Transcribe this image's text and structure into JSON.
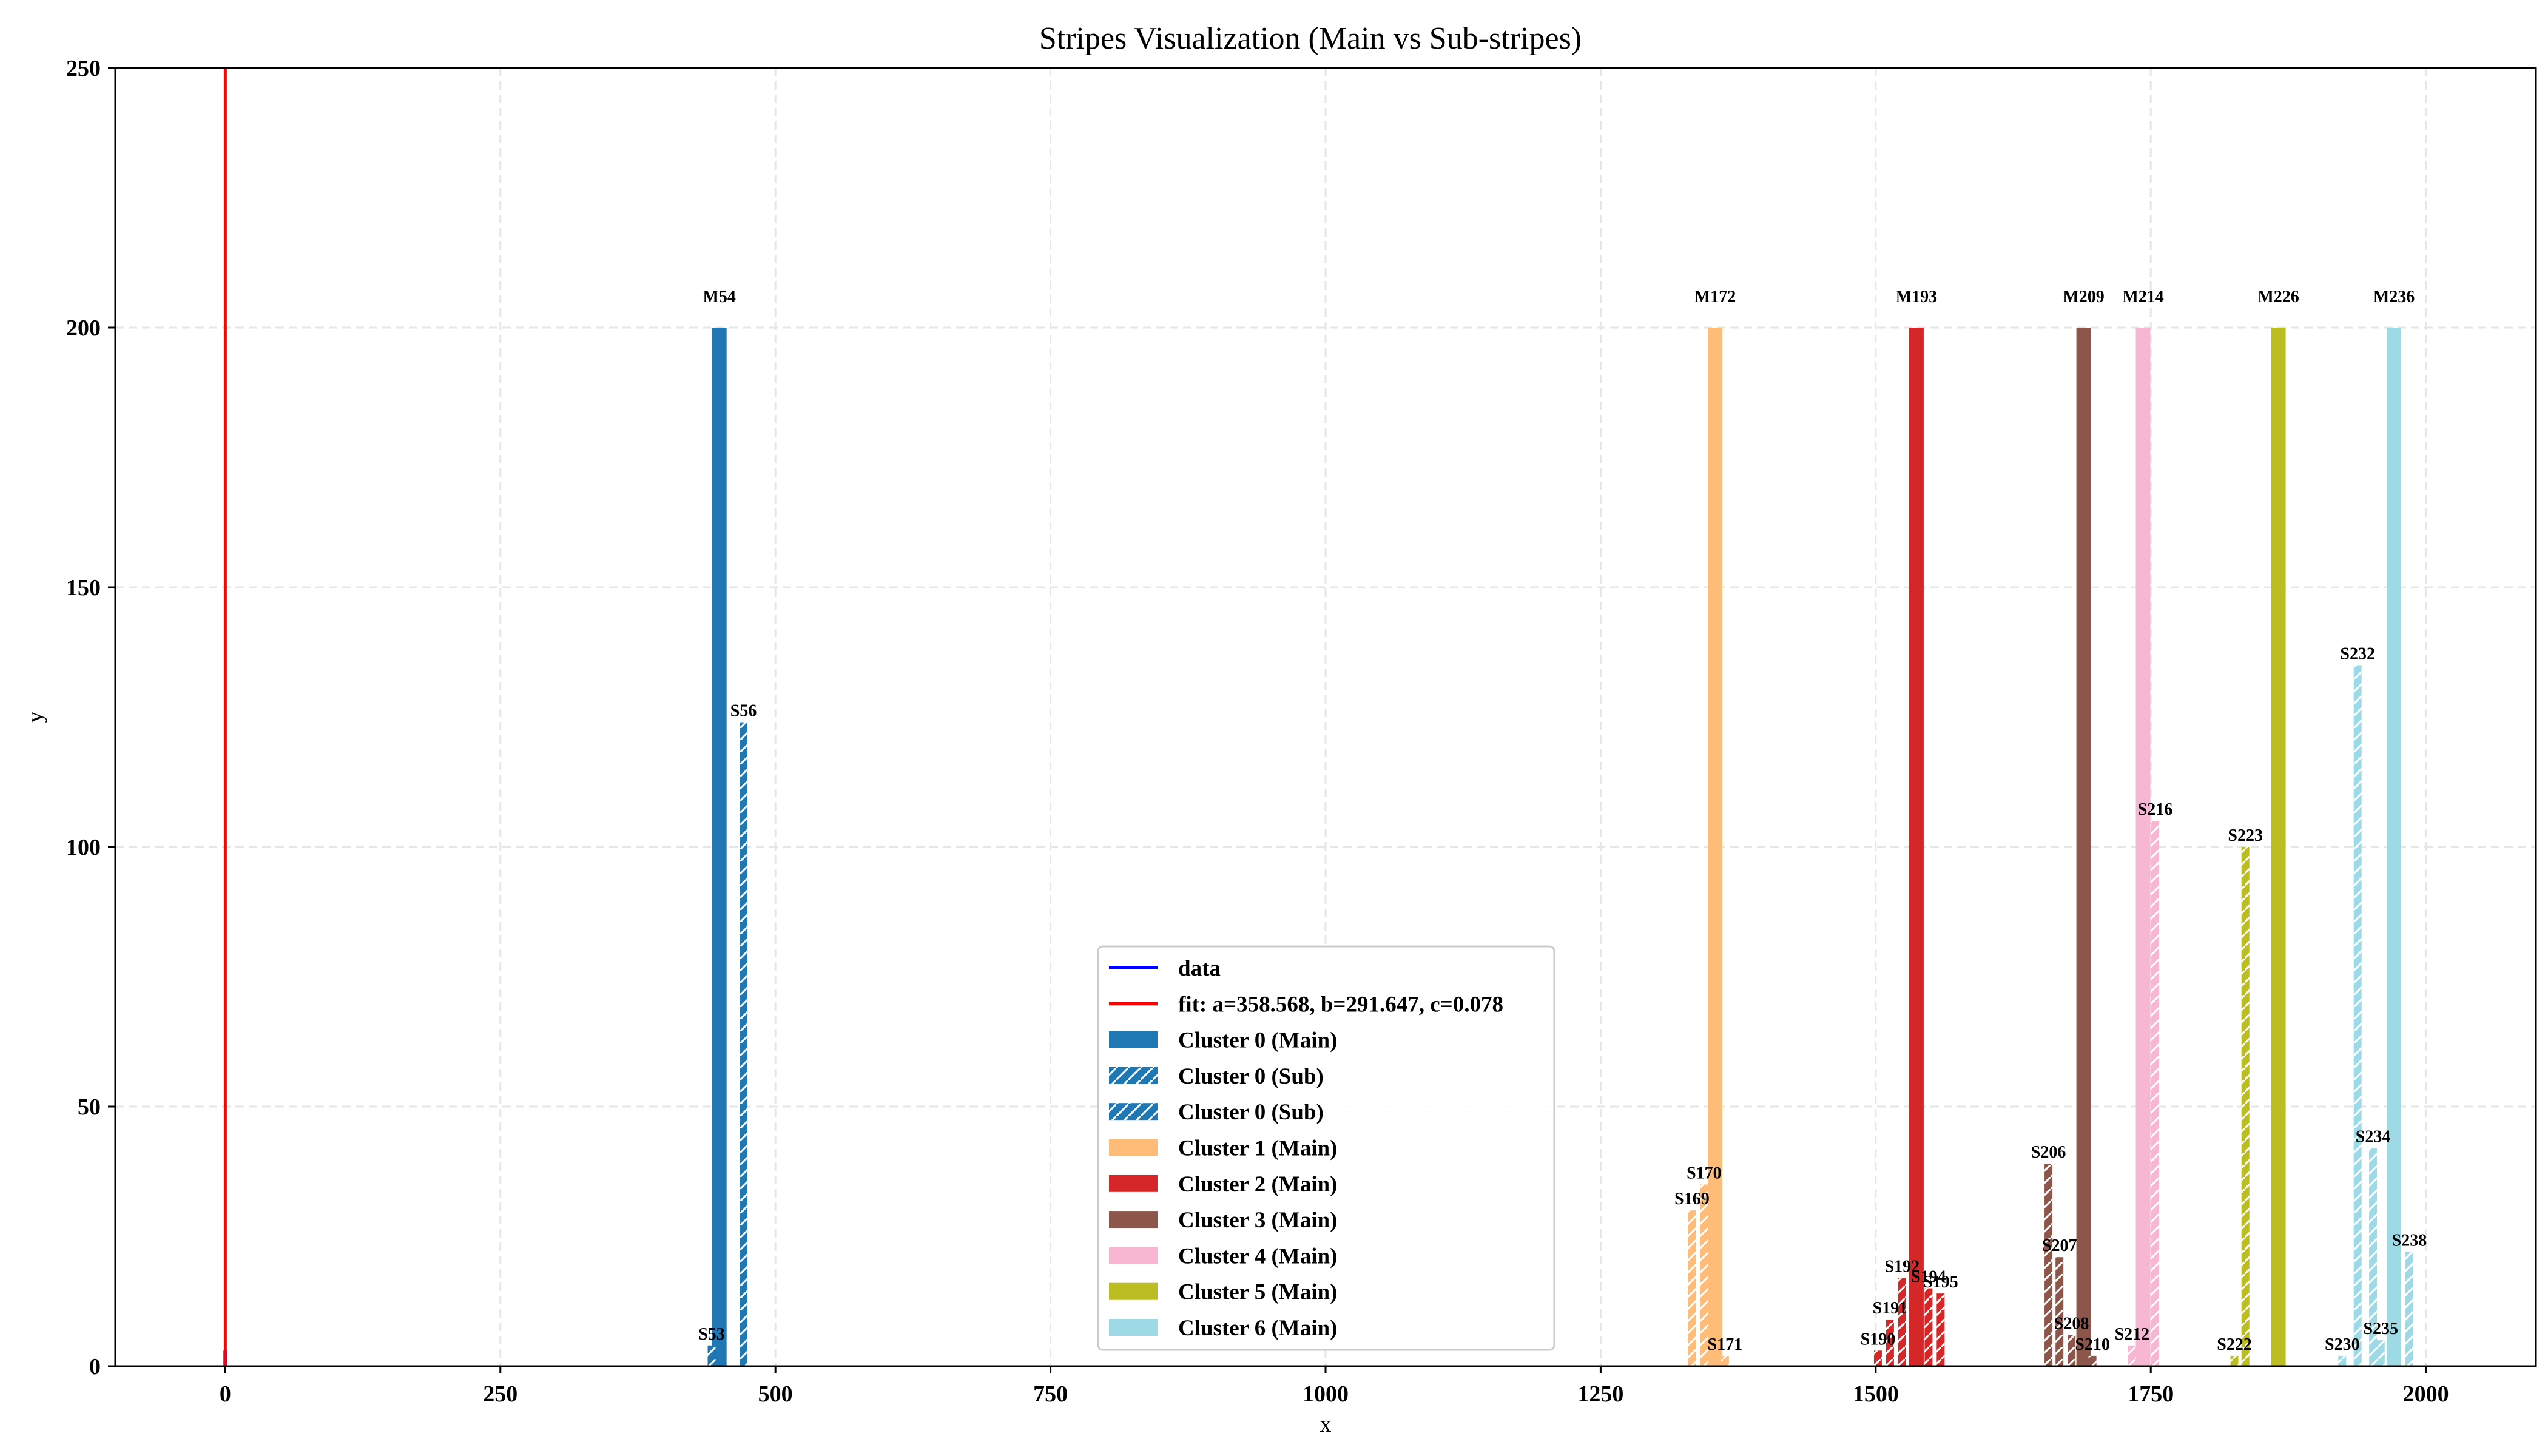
{
  "chart_data": {
    "type": "bar",
    "title": "Stripes Visualization (Main vs Sub-stripes)",
    "xlabel": "x",
    "ylabel": "y",
    "xlim": [
      -100,
      2100
    ],
    "ylim": [
      0,
      250
    ],
    "xticks": [
      0,
      250,
      500,
      750,
      1000,
      1250,
      1500,
      1750,
      2000
    ],
    "yticks": [
      0,
      50,
      100,
      150,
      200,
      250
    ],
    "grid": true,
    "legend_position": "lower-center",
    "colors": {
      "cluster0": "#1f77b4",
      "cluster1": "#ffbb78",
      "cluster2": "#d62728",
      "cluster3": "#8c564b",
      "cluster4": "#f7b6d2",
      "cluster5": "#bcbd22",
      "cluster6": "#9edae5",
      "data_line": "#0000ff",
      "fit_line": "#ff0000"
    },
    "line_series": [
      {
        "name": "data",
        "color": "#0000ff",
        "points": [
          [
            0,
            0
          ],
          [
            0,
            3
          ]
        ]
      },
      {
        "name": "fit: a=358.568, b=291.647, c=0.078",
        "color": "#ff0000",
        "points": [
          [
            0,
            0
          ],
          [
            0,
            250
          ]
        ]
      }
    ],
    "bars": [
      {
        "label": "M54",
        "x": 449,
        "y": 200,
        "cluster": 0,
        "kind": "main"
      },
      {
        "label": "S53",
        "x": 442,
        "y": 4,
        "cluster": 0,
        "kind": "sub"
      },
      {
        "label": "S56",
        "x": 471,
        "y": 124,
        "cluster": 0,
        "kind": "sub"
      },
      {
        "label": "M172",
        "x": 1354,
        "y": 200,
        "cluster": 1,
        "kind": "main"
      },
      {
        "label": "S169",
        "x": 1333,
        "y": 30,
        "cluster": 1,
        "kind": "sub"
      },
      {
        "label": "S170",
        "x": 1344,
        "y": 35,
        "cluster": 1,
        "kind": "sub"
      },
      {
        "label": "S171",
        "x": 1363,
        "y": 2,
        "cluster": 1,
        "kind": "sub"
      },
      {
        "label": "M193",
        "x": 1537,
        "y": 200,
        "cluster": 2,
        "kind": "main"
      },
      {
        "label": "S190",
        "x": 1502,
        "y": 3,
        "cluster": 2,
        "kind": "sub"
      },
      {
        "label": "S191",
        "x": 1513,
        "y": 9,
        "cluster": 2,
        "kind": "sub"
      },
      {
        "label": "S192",
        "x": 1524,
        "y": 17,
        "cluster": 2,
        "kind": "sub"
      },
      {
        "label": "S194",
        "x": 1548,
        "y": 15,
        "cluster": 2,
        "kind": "sub"
      },
      {
        "label": "S195",
        "x": 1559,
        "y": 14,
        "cluster": 2,
        "kind": "sub"
      },
      {
        "label": "M209",
        "x": 1689,
        "y": 200,
        "cluster": 3,
        "kind": "main"
      },
      {
        "label": "S206",
        "x": 1657,
        "y": 39,
        "cluster": 3,
        "kind": "sub"
      },
      {
        "label": "S207",
        "x": 1667,
        "y": 21,
        "cluster": 3,
        "kind": "sub"
      },
      {
        "label": "S208",
        "x": 1678,
        "y": 6,
        "cluster": 3,
        "kind": "sub"
      },
      {
        "label": "S210",
        "x": 1697,
        "y": 2,
        "cluster": 3,
        "kind": "sub"
      },
      {
        "label": "M214",
        "x": 1743,
        "y": 200,
        "cluster": 4,
        "kind": "main"
      },
      {
        "label": "S212",
        "x": 1733,
        "y": 4,
        "cluster": 4,
        "kind": "sub"
      },
      {
        "label": "S216",
        "x": 1754,
        "y": 105,
        "cluster": 4,
        "kind": "sub"
      },
      {
        "label": "M226",
        "x": 1866,
        "y": 200,
        "cluster": 5,
        "kind": "main"
      },
      {
        "label": "S222",
        "x": 1826,
        "y": 2,
        "cluster": 5,
        "kind": "sub"
      },
      {
        "label": "S223",
        "x": 1836,
        "y": 100,
        "cluster": 5,
        "kind": "sub"
      },
      {
        "label": "M236",
        "x": 1971,
        "y": 200,
        "cluster": 6,
        "kind": "main"
      },
      {
        "label": "S230",
        "x": 1924,
        "y": 2,
        "cluster": 6,
        "kind": "sub"
      },
      {
        "label": "S232",
        "x": 1938,
        "y": 135,
        "cluster": 6,
        "kind": "sub"
      },
      {
        "label": "S234",
        "x": 1952,
        "y": 42,
        "cluster": 6,
        "kind": "sub"
      },
      {
        "label": "S235",
        "x": 1959,
        "y": 5,
        "cluster": 6,
        "kind": "sub"
      },
      {
        "label": "S238",
        "x": 1985,
        "y": 22,
        "cluster": 6,
        "kind": "sub"
      }
    ],
    "legend": [
      {
        "label": "data",
        "kind": "line",
        "color": "#0000ff"
      },
      {
        "label": "fit: a=358.568, b=291.647, c=0.078",
        "kind": "line",
        "color": "#ff0000"
      },
      {
        "label": "Cluster 0 (Main)",
        "kind": "main",
        "color": "#1f77b4"
      },
      {
        "label": "Cluster 0 (Sub)",
        "kind": "sub",
        "color": "#1f77b4"
      },
      {
        "label": "Cluster 0 (Sub)",
        "kind": "sub",
        "color": "#1f77b4"
      },
      {
        "label": "Cluster 1 (Main)",
        "kind": "main",
        "color": "#ffbb78"
      },
      {
        "label": "Cluster 2 (Main)",
        "kind": "main",
        "color": "#d62728"
      },
      {
        "label": "Cluster 3 (Main)",
        "kind": "main",
        "color": "#8c564b"
      },
      {
        "label": "Cluster 4 (Main)",
        "kind": "main",
        "color": "#f7b6d2"
      },
      {
        "label": "Cluster 5 (Main)",
        "kind": "main",
        "color": "#bcbd22"
      },
      {
        "label": "Cluster 6 (Main)",
        "kind": "main",
        "color": "#9edae5"
      }
    ]
  }
}
